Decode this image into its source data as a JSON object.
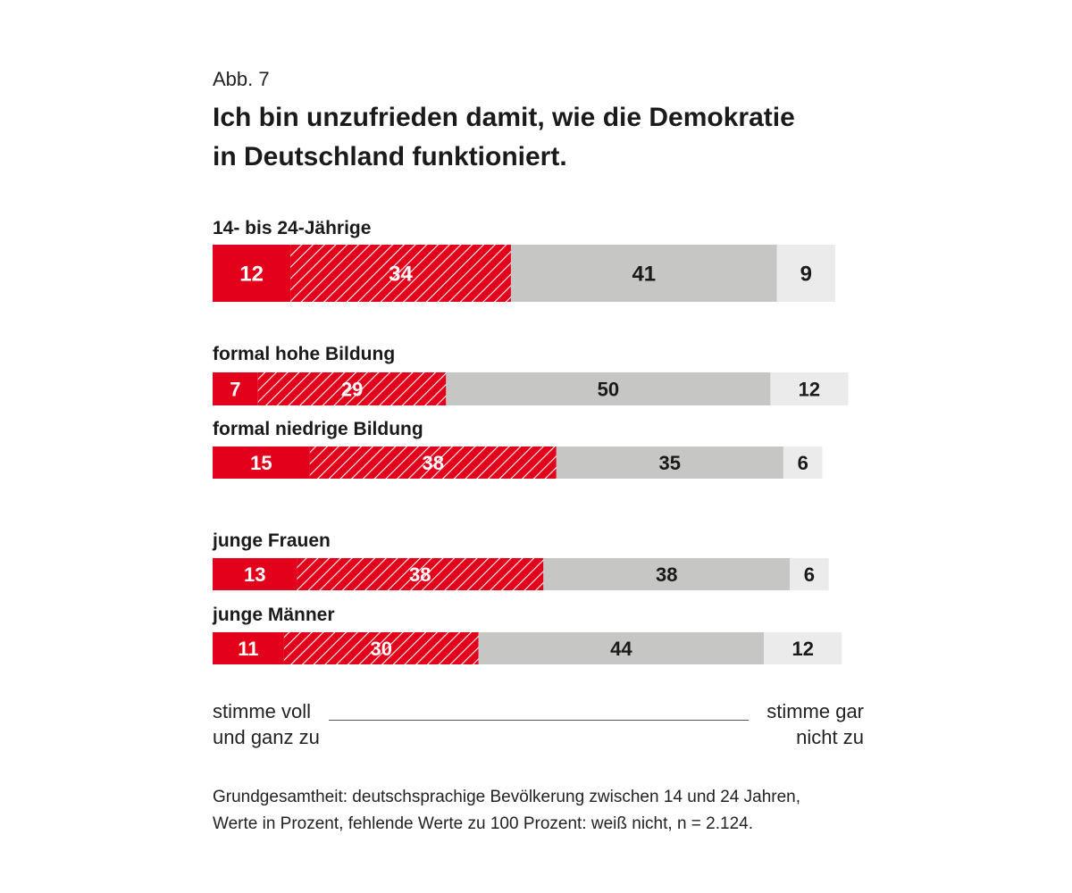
{
  "figure_number": "Abb. 7",
  "chart_data": {
    "type": "bar",
    "orientation": "horizontal",
    "stacked": true,
    "title_lines": [
      "Ich bin unzufrieden damit, wie die Demokratie",
      "in Deutschland funktioniert."
    ],
    "categories": [
      "14- bis 24-Jährige",
      "formal hohe Bildung",
      "formal niedrige Bildung",
      "junge Frauen",
      "junge Männer"
    ],
    "series": [
      {
        "values": [
          12,
          7,
          15,
          13,
          11
        ],
        "color": "#e2001a",
        "pattern": "solid",
        "label_color": "#ffffff"
      },
      {
        "values": [
          34,
          29,
          38,
          38,
          30
        ],
        "color": "#e2001a",
        "pattern": "hatched",
        "label_color": "#ffffff"
      },
      {
        "values": [
          41,
          50,
          35,
          38,
          44
        ],
        "color": "#c6c6c4",
        "pattern": "solid",
        "label_color": "#1a1a1a"
      },
      {
        "values": [
          9,
          12,
          6,
          6,
          12
        ],
        "color": "#ebebeb",
        "pattern": "solid",
        "label_color": "#1a1a1a"
      }
    ],
    "unit": "Prozent",
    "scale_left": [
      "stimme voll",
      "und ganz zu"
    ],
    "scale_right": [
      "stimme gar",
      "nicht zu"
    ]
  },
  "footnote_lines": [
    "Grundgesamtheit: deutschsprachige Bevölkerung zwischen 14 und 24  Jahren,",
    "Werte in Prozent, fehlende Werte zu 100 Prozent: weiß nicht, n = 2.124."
  ]
}
